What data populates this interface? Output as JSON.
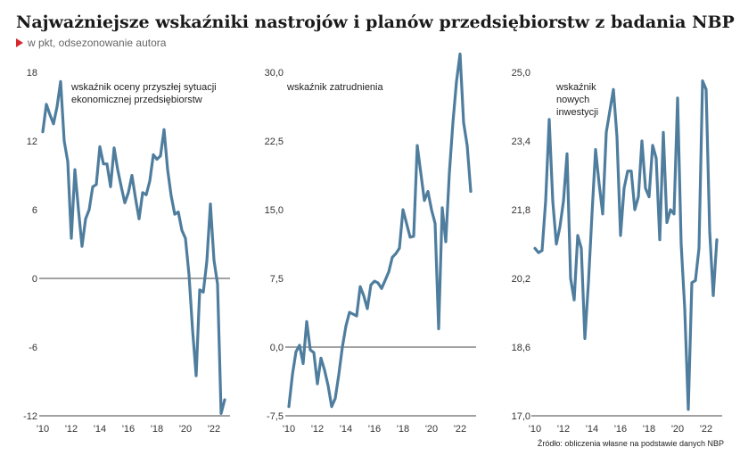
{
  "title": "Najważniejsze wskaźniki nastrojów i planów przedsiębiorstw z badania NBP",
  "subtitle": "w pkt, odsezonowanie autora",
  "source": "Źródło: obliczenia własne na podstawie danych NBP",
  "colors": {
    "line": "#4f7d9e",
    "accent": "#d7262e",
    "baseline": "#6b6b6b"
  },
  "chart_data": [
    {
      "type": "line",
      "label_lines": [
        "wskaźnik oceny przyszłej sytuacji",
        "ekonomicznej przedsiębiorstw"
      ],
      "ylim": [
        -12,
        18
      ],
      "yticks": [
        "18",
        "12",
        "6",
        "0",
        "-6",
        "-12"
      ],
      "xticks": [
        "'10",
        "'12",
        "'14",
        "'16",
        "'18",
        "'20",
        "'22"
      ],
      "xlim": [
        2010,
        2023
      ],
      "baseline": 0,
      "series": [
        {
          "x": [
            2010.0,
            2010.25,
            2010.5,
            2010.75,
            2011.0,
            2011.25,
            2011.5,
            2011.75,
            2012.0,
            2012.25,
            2012.5,
            2012.75,
            2013.0,
            2013.25,
            2013.5,
            2013.75,
            2014.0,
            2014.25,
            2014.5,
            2014.75,
            2015.0,
            2015.25,
            2015.5,
            2015.75,
            2016.0,
            2016.25,
            2016.5,
            2016.75,
            2017.0,
            2017.25,
            2017.5,
            2017.75,
            2018.0,
            2018.25,
            2018.5,
            2018.75,
            2019.0,
            2019.25,
            2019.5,
            2019.75,
            2020.0,
            2020.25,
            2020.5,
            2020.75,
            2021.0,
            2021.25,
            2021.5,
            2021.75,
            2022.0,
            2022.25,
            2022.5,
            2022.75
          ],
          "y": [
            12.8,
            15.2,
            14.3,
            13.5,
            15.0,
            17.2,
            12.0,
            10.2,
            3.5,
            9.5,
            6.0,
            2.8,
            5.2,
            6.0,
            8.0,
            8.2,
            11.5,
            10.0,
            10.0,
            8.0,
            11.4,
            9.5,
            8.0,
            6.6,
            7.5,
            9.0,
            7.0,
            5.2,
            7.5,
            7.3,
            8.5,
            10.8,
            10.4,
            10.7,
            13.0,
            9.5,
            7.2,
            5.6,
            5.8,
            4.2,
            3.5,
            0.3,
            -4.5,
            -8.5,
            -1.0,
            -1.2,
            1.5,
            6.5,
            1.6,
            -0.5,
            -11.8,
            -10.6
          ]
        }
      ]
    },
    {
      "type": "line",
      "label_lines": [
        "wskaźnik zatrudnienia"
      ],
      "ylim": [
        -7.5,
        30.0
      ],
      "yticks": [
        "30,0",
        "22,5",
        "15,0",
        "7,5",
        "0,0",
        "-7,5"
      ],
      "xticks": [
        "'10",
        "'12",
        "'14",
        "'16",
        "'18",
        "'20",
        "'22"
      ],
      "xlim": [
        2010,
        2023
      ],
      "baseline": 0,
      "series": [
        {
          "x": [
            2010.0,
            2010.25,
            2010.5,
            2010.75,
            2011.0,
            2011.25,
            2011.5,
            2011.75,
            2012.0,
            2012.25,
            2012.5,
            2012.75,
            2013.0,
            2013.25,
            2013.5,
            2013.75,
            2014.0,
            2014.25,
            2014.5,
            2014.75,
            2015.0,
            2015.25,
            2015.5,
            2015.75,
            2016.0,
            2016.25,
            2016.5,
            2016.75,
            2017.0,
            2017.25,
            2017.5,
            2017.75,
            2018.0,
            2018.25,
            2018.5,
            2018.75,
            2019.0,
            2019.25,
            2019.5,
            2019.75,
            2020.0,
            2020.25,
            2020.5,
            2020.75,
            2021.0,
            2021.25,
            2021.5,
            2021.75,
            2022.0,
            2022.25,
            2022.5,
            2022.75
          ],
          "y": [
            -6.5,
            -3.0,
            -0.5,
            0.2,
            -1.8,
            2.8,
            -0.3,
            -0.6,
            -4.0,
            -1.2,
            -2.5,
            -4.2,
            -6.5,
            -5.6,
            -3.0,
            0.0,
            2.3,
            3.8,
            3.6,
            3.4,
            6.6,
            5.6,
            4.2,
            6.8,
            7.2,
            7.0,
            6.4,
            7.3,
            8.2,
            9.8,
            10.2,
            10.8,
            15.0,
            13.5,
            12.0,
            12.1,
            22.0,
            19.0,
            16.0,
            17.0,
            15.0,
            13.5,
            2.0,
            15.2,
            11.5,
            19.0,
            24.5,
            29.0,
            32.0,
            24.5,
            22.0,
            17.0
          ]
        }
      ]
    },
    {
      "type": "line",
      "label_lines": [
        "wskaźnik",
        "nowych",
        "inwestycji"
      ],
      "ylim": [
        17.0,
        25.0
      ],
      "yticks": [
        "25,0",
        "23,4",
        "21,8",
        "20,2",
        "18,6",
        "17,0"
      ],
      "xticks": [
        "'10",
        "'12",
        "'14",
        "'16",
        "'18",
        "'20",
        "'22"
      ],
      "xlim": [
        2010,
        2023
      ],
      "series": [
        {
          "x": [
            2010.0,
            2010.25,
            2010.5,
            2010.75,
            2011.0,
            2011.25,
            2011.5,
            2011.75,
            2012.0,
            2012.25,
            2012.5,
            2012.75,
            2013.0,
            2013.25,
            2013.5,
            2013.75,
            2014.0,
            2014.25,
            2014.5,
            2014.75,
            2015.0,
            2015.25,
            2015.5,
            2015.75,
            2016.0,
            2016.25,
            2016.5,
            2016.75,
            2017.0,
            2017.25,
            2017.5,
            2017.75,
            2018.0,
            2018.25,
            2018.5,
            2018.75,
            2019.0,
            2019.25,
            2019.5,
            2019.75,
            2020.0,
            2020.25,
            2020.5,
            2020.75,
            2021.0,
            2021.25,
            2021.5,
            2021.75,
            2022.0,
            2022.25,
            2022.5,
            2022.75
          ],
          "y": [
            20.9,
            20.8,
            20.85,
            22.0,
            23.9,
            22.0,
            21.0,
            21.4,
            22.0,
            23.1,
            20.2,
            19.7,
            21.2,
            20.9,
            18.8,
            20.1,
            21.7,
            23.2,
            22.4,
            21.7,
            23.6,
            24.1,
            24.6,
            23.5,
            21.2,
            22.3,
            22.7,
            22.7,
            21.8,
            22.1,
            23.4,
            22.3,
            22.1,
            23.3,
            23.0,
            21.1,
            23.6,
            21.5,
            21.8,
            21.7,
            24.4,
            21.0,
            19.5,
            17.15,
            20.1,
            20.15,
            20.9,
            24.8,
            24.6,
            21.3,
            19.8,
            21.1
          ]
        }
      ]
    }
  ]
}
